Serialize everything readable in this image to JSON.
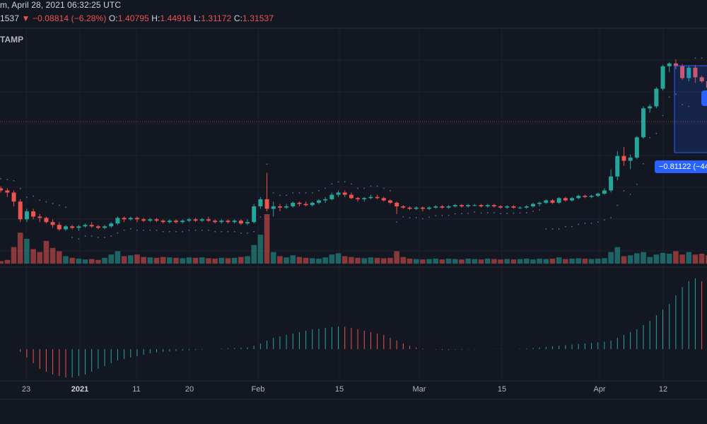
{
  "legend": {
    "price_fragment": "1537",
    "arrow": "▼",
    "change": "−0.08814 (−6.28%)",
    "open_label": "O:",
    "open_value": "1.40795",
    "high_label": "H:",
    "high_value": "1.44916",
    "low_label": "L:",
    "low_value": "1.31172",
    "close_label": "C:",
    "close_value": "1.31537",
    "timestamp": "m, April 28, 2021 06:32:25 UTC"
  },
  "exchange_label": "TAMP",
  "measure": {
    "label": "−0.81122 (−44"
  },
  "x_axis": {
    "ticks": [
      {
        "label": "23",
        "bold": false
      },
      {
        "label": "2021",
        "bold": true
      },
      {
        "label": "11",
        "bold": false
      },
      {
        "label": "20",
        "bold": false
      },
      {
        "label": "Feb",
        "bold": false
      },
      {
        "label": "15",
        "bold": false
      },
      {
        "label": "Mar",
        "bold": false
      },
      {
        "label": "15",
        "bold": false
      },
      {
        "label": "Apr",
        "bold": false
      },
      {
        "label": "12",
        "bold": false
      }
    ]
  },
  "colors": {
    "background": "#131722",
    "up": "#26a69a",
    "down": "#ef5350",
    "volume_up": "#26a69a",
    "volume_down": "#ef5350",
    "grid": "#1e222d",
    "sar": "#5d6fa6",
    "measure": "#2962ff"
  },
  "chart_data": {
    "type": "candlestick",
    "interval": "daily",
    "start": "2020-12-17",
    "ohlc": [
      [
        0.55,
        0.56,
        0.53,
        0.54
      ],
      [
        0.54,
        0.55,
        0.52,
        0.53
      ],
      [
        0.53,
        0.54,
        0.5,
        0.52
      ],
      [
        0.52,
        0.53,
        0.46,
        0.48
      ],
      [
        0.48,
        0.49,
        0.4,
        0.41
      ],
      [
        0.41,
        0.45,
        0.4,
        0.44
      ],
      [
        0.44,
        0.45,
        0.41,
        0.42
      ],
      [
        0.42,
        0.43,
        0.4,
        0.415
      ],
      [
        0.415,
        0.42,
        0.395,
        0.4
      ],
      [
        0.4,
        0.41,
        0.38,
        0.39
      ],
      [
        0.39,
        0.4,
        0.37,
        0.375
      ],
      [
        0.375,
        0.39,
        0.37,
        0.385
      ],
      [
        0.385,
        0.39,
        0.375,
        0.38
      ],
      [
        0.38,
        0.39,
        0.37,
        0.385
      ],
      [
        0.385,
        0.395,
        0.38,
        0.39
      ],
      [
        0.39,
        0.4,
        0.38,
        0.385
      ],
      [
        0.385,
        0.39,
        0.375,
        0.38
      ],
      [
        0.38,
        0.39,
        0.375,
        0.385
      ],
      [
        0.385,
        0.4,
        0.38,
        0.395
      ],
      [
        0.395,
        0.42,
        0.39,
        0.415
      ],
      [
        0.415,
        0.42,
        0.4,
        0.41
      ],
      [
        0.41,
        0.42,
        0.405,
        0.415
      ],
      [
        0.415,
        0.42,
        0.4,
        0.41
      ],
      [
        0.41,
        0.415,
        0.4,
        0.405
      ],
      [
        0.405,
        0.415,
        0.4,
        0.41
      ],
      [
        0.41,
        0.415,
        0.4,
        0.405
      ],
      [
        0.405,
        0.41,
        0.395,
        0.4
      ],
      [
        0.4,
        0.41,
        0.395,
        0.405
      ],
      [
        0.405,
        0.41,
        0.395,
        0.4
      ],
      [
        0.4,
        0.41,
        0.395,
        0.405
      ],
      [
        0.405,
        0.415,
        0.4,
        0.41
      ],
      [
        0.41,
        0.415,
        0.4,
        0.405
      ],
      [
        0.405,
        0.415,
        0.4,
        0.41
      ],
      [
        0.41,
        0.42,
        0.4,
        0.405
      ],
      [
        0.405,
        0.41,
        0.395,
        0.4
      ],
      [
        0.4,
        0.41,
        0.395,
        0.405
      ],
      [
        0.405,
        0.41,
        0.395,
        0.4
      ],
      [
        0.4,
        0.41,
        0.395,
        0.405
      ],
      [
        0.405,
        0.41,
        0.39,
        0.395
      ],
      [
        0.395,
        0.41,
        0.39,
        0.4
      ],
      [
        0.4,
        0.47,
        0.395,
        0.46
      ],
      [
        0.46,
        0.5,
        0.45,
        0.49
      ],
      [
        0.49,
        0.62,
        0.44,
        0.45
      ],
      [
        0.45,
        0.48,
        0.42,
        0.46
      ],
      [
        0.46,
        0.47,
        0.44,
        0.455
      ],
      [
        0.455,
        0.47,
        0.45,
        0.46
      ],
      [
        0.46,
        0.48,
        0.455,
        0.475
      ],
      [
        0.475,
        0.48,
        0.46,
        0.47
      ],
      [
        0.47,
        0.48,
        0.46,
        0.465
      ],
      [
        0.465,
        0.48,
        0.46,
        0.475
      ],
      [
        0.475,
        0.49,
        0.47,
        0.485
      ],
      [
        0.485,
        0.5,
        0.475,
        0.49
      ],
      [
        0.49,
        0.52,
        0.485,
        0.51
      ],
      [
        0.51,
        0.53,
        0.5,
        0.52
      ],
      [
        0.52,
        0.53,
        0.5,
        0.51
      ],
      [
        0.51,
        0.52,
        0.49,
        0.495
      ],
      [
        0.495,
        0.5,
        0.48,
        0.49
      ],
      [
        0.49,
        0.5,
        0.48,
        0.495
      ],
      [
        0.495,
        0.51,
        0.49,
        0.5
      ],
      [
        0.5,
        0.51,
        0.49,
        0.495
      ],
      [
        0.495,
        0.5,
        0.48,
        0.485
      ],
      [
        0.485,
        0.49,
        0.47,
        0.475
      ],
      [
        0.475,
        0.48,
        0.43,
        0.46
      ],
      [
        0.46,
        0.465,
        0.45,
        0.455
      ],
      [
        0.455,
        0.46,
        0.445,
        0.45
      ],
      [
        0.45,
        0.46,
        0.445,
        0.455
      ],
      [
        0.455,
        0.46,
        0.44,
        0.45
      ],
      [
        0.45,
        0.46,
        0.445,
        0.455
      ],
      [
        0.455,
        0.465,
        0.45,
        0.46
      ],
      [
        0.46,
        0.465,
        0.45,
        0.455
      ],
      [
        0.455,
        0.465,
        0.45,
        0.46
      ],
      [
        0.46,
        0.47,
        0.455,
        0.465
      ],
      [
        0.465,
        0.47,
        0.455,
        0.46
      ],
      [
        0.46,
        0.47,
        0.455,
        0.465
      ],
      [
        0.465,
        0.47,
        0.46,
        0.465
      ],
      [
        0.465,
        0.47,
        0.455,
        0.46
      ],
      [
        0.46,
        0.47,
        0.455,
        0.465
      ],
      [
        0.465,
        0.47,
        0.455,
        0.46
      ],
      [
        0.46,
        0.465,
        0.45,
        0.455
      ],
      [
        0.455,
        0.465,
        0.45,
        0.46
      ],
      [
        0.46,
        0.465,
        0.45,
        0.455
      ],
      [
        0.455,
        0.46,
        0.45,
        0.455
      ],
      [
        0.455,
        0.465,
        0.45,
        0.46
      ],
      [
        0.46,
        0.475,
        0.455,
        0.47
      ],
      [
        0.47,
        0.48,
        0.46,
        0.475
      ],
      [
        0.475,
        0.49,
        0.47,
        0.485
      ],
      [
        0.485,
        0.49,
        0.47,
        0.475
      ],
      [
        0.475,
        0.5,
        0.47,
        0.495
      ],
      [
        0.495,
        0.5,
        0.48,
        0.485
      ],
      [
        0.485,
        0.5,
        0.48,
        0.495
      ],
      [
        0.495,
        0.51,
        0.49,
        0.505
      ],
      [
        0.505,
        0.51,
        0.495,
        0.5
      ],
      [
        0.5,
        0.51,
        0.495,
        0.505
      ],
      [
        0.505,
        0.52,
        0.5,
        0.515
      ],
      [
        0.515,
        0.54,
        0.51,
        0.53
      ],
      [
        0.53,
        0.64,
        0.52,
        0.6
      ],
      [
        0.6,
        0.75,
        0.58,
        0.72
      ],
      [
        0.72,
        0.78,
        0.66,
        0.69
      ],
      [
        0.69,
        0.73,
        0.64,
        0.71
      ],
      [
        0.71,
        0.86,
        0.7,
        0.85
      ],
      [
        0.85,
        1.12,
        0.84,
        1.1
      ],
      [
        1.1,
        1.14,
        1.06,
        1.12
      ],
      [
        1.12,
        1.33,
        1.1,
        1.31
      ],
      [
        1.31,
        1.62,
        1.29,
        1.6
      ],
      [
        1.6,
        1.66,
        1.52,
        1.64
      ],
      [
        1.64,
        1.7,
        1.56,
        1.6
      ],
      [
        1.6,
        1.63,
        1.42,
        1.44
      ],
      [
        1.44,
        1.61,
        1.4,
        1.58
      ],
      [
        1.58,
        1.62,
        1.38,
        1.45
      ],
      [
        1.45,
        1.47,
        1.38,
        1.4
      ],
      [
        1.4,
        1.45,
        1.31,
        1.32
      ]
    ],
    "volume": [
      5,
      6,
      9,
      40,
      75,
      60,
      35,
      28,
      55,
      38,
      30,
      18,
      14,
      12,
      10,
      11,
      9,
      14,
      22,
      30,
      18,
      20,
      22,
      16,
      15,
      14,
      16,
      15,
      14,
      13,
      15,
      14,
      15,
      13,
      12,
      14,
      13,
      14,
      16,
      18,
      45,
      70,
      120,
      28,
      18,
      15,
      20,
      16,
      14,
      13,
      12,
      15,
      22,
      25,
      18,
      16,
      14,
      13,
      15,
      14,
      13,
      14,
      30,
      16,
      12,
      11,
      10,
      11,
      12,
      10,
      12,
      11,
      10,
      12,
      11,
      10,
      12,
      11,
      10,
      11,
      10,
      11,
      12,
      10,
      12,
      11,
      12,
      15,
      11,
      12,
      13,
      12,
      11,
      12,
      13,
      28,
      40,
      18,
      20,
      25,
      28,
      16,
      22,
      26,
      24,
      30,
      22,
      28,
      22,
      24,
      20
    ],
    "histogram": [
      0,
      0,
      0,
      0,
      -0.01,
      -0.03,
      -0.05,
      -0.07,
      -0.08,
      -0.09,
      -0.095,
      -0.1,
      -0.1,
      -0.095,
      -0.09,
      -0.08,
      -0.07,
      -0.06,
      -0.05,
      -0.04,
      -0.035,
      -0.03,
      -0.025,
      -0.02,
      -0.015,
      -0.012,
      -0.01,
      -0.008,
      -0.006,
      -0.005,
      -0.004,
      -0.003,
      -0.002,
      0.0,
      0.001,
      0.002,
      0.003,
      0.004,
      0.005,
      0.006,
      0.012,
      0.02,
      0.03,
      0.04,
      0.045,
      0.05,
      0.055,
      0.06,
      0.065,
      0.07,
      0.072,
      0.075,
      0.078,
      0.08,
      0.079,
      0.075,
      0.07,
      0.065,
      0.06,
      0.055,
      0.05,
      0.04,
      0.03,
      0.02,
      0.012,
      0.006,
      0.002,
      0.0,
      -0.002,
      -0.003,
      -0.003,
      -0.002,
      -0.002,
      -0.001,
      -0.001,
      0.0,
      0.0,
      0.001,
      0.001,
      0.0,
      0.0,
      0.001,
      0.002,
      0.004,
      0.006,
      0.008,
      0.01,
      0.012,
      0.014,
      0.016,
      0.018,
      0.02,
      0.022,
      0.024,
      0.026,
      0.03,
      0.04,
      0.05,
      0.06,
      0.07,
      0.085,
      0.1,
      0.12,
      0.14,
      0.16,
      0.19,
      0.22,
      0.24,
      0.25,
      0.24,
      0.22
    ]
  }
}
